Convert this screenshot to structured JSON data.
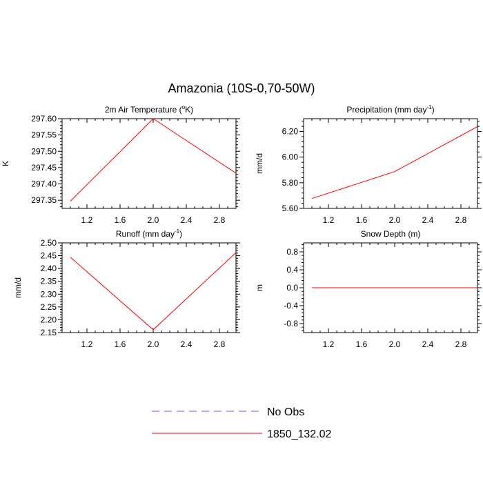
{
  "figure": {
    "title": "Amazonia (10S-0,70-50W)"
  },
  "legend": {
    "position": "bottom-center",
    "entries": [
      {
        "name": "No Obs",
        "color": "#5b5bff",
        "style": "dashed"
      },
      {
        "name": "1850_132.02",
        "color": "#ff0000",
        "style": "solid"
      }
    ]
  },
  "chart_data": [
    {
      "type": "line",
      "title": "2m Air Temperature (oK)",
      "title_parts": [
        "2m Air Temperature (",
        "o",
        "K)"
      ],
      "ylabel": "K",
      "xlim": [
        0.9,
        3.0
      ],
      "ylim": [
        297.325,
        297.6
      ],
      "xticks": [
        "1.2",
        "1.6",
        "2.0",
        "2.4",
        "2.8"
      ],
      "yticks": [
        "297.35",
        "297.40",
        "297.45",
        "297.50",
        "297.55",
        "297.60"
      ],
      "series": [
        {
          "name": "1850_132.02",
          "color": "#ff0000",
          "x": [
            1.0,
            2.0,
            3.0
          ],
          "y": [
            297.347,
            297.6,
            297.433
          ]
        }
      ]
    },
    {
      "type": "line",
      "title": "Precipitation (mm day-1)",
      "title_parts": [
        "Precipitation (mm day",
        "-1",
        ")"
      ],
      "ylabel": "mm/d",
      "xlim": [
        0.9,
        3.0
      ],
      "ylim": [
        5.6,
        6.3
      ],
      "xticks": [
        "1.2",
        "1.6",
        "2.0",
        "2.4",
        "2.8"
      ],
      "yticks": [
        "5.60",
        "5.80",
        "6.00",
        "6.20"
      ],
      "series": [
        {
          "name": "1850_132.02",
          "color": "#ff0000",
          "x": [
            1.0,
            2.0,
            3.0
          ],
          "y": [
            5.677,
            5.887,
            6.238
          ]
        }
      ]
    },
    {
      "type": "line",
      "title": "Runoff (mm day-1)",
      "title_parts": [
        "Runoff (mm day",
        "-1",
        ")"
      ],
      "ylabel": "mm/d",
      "xlim": [
        0.9,
        3.0
      ],
      "ylim": [
        2.15,
        2.5
      ],
      "xticks": [
        "1.2",
        "1.6",
        "2.0",
        "2.4",
        "2.8"
      ],
      "yticks": [
        "2.15",
        "2.20",
        "2.25",
        "2.30",
        "2.35",
        "2.40",
        "2.45",
        "2.50"
      ],
      "series": [
        {
          "name": "1850_132.02",
          "color": "#ff0000",
          "x": [
            1.0,
            2.0,
            3.0
          ],
          "y": [
            2.444,
            2.161,
            2.462
          ]
        }
      ]
    },
    {
      "type": "line",
      "title": "Snow Depth (m)",
      "title_parts": [
        "Snow Depth (m)",
        "",
        ""
      ],
      "ylabel": "m",
      "xlim": [
        0.9,
        3.0
      ],
      "ylim": [
        -1.0,
        1.0
      ],
      "xticks": [
        "1.2",
        "1.6",
        "2.0",
        "2.4",
        "2.8"
      ],
      "yticks": [
        "-0.8",
        "-0.4",
        "0.0",
        "0.4",
        "0.8"
      ],
      "series": [
        {
          "name": "1850_132.02",
          "color": "#ff0000",
          "x": [
            1.0,
            2.0,
            3.0
          ],
          "y": [
            0.0,
            0.0,
            0.0
          ]
        }
      ]
    }
  ]
}
